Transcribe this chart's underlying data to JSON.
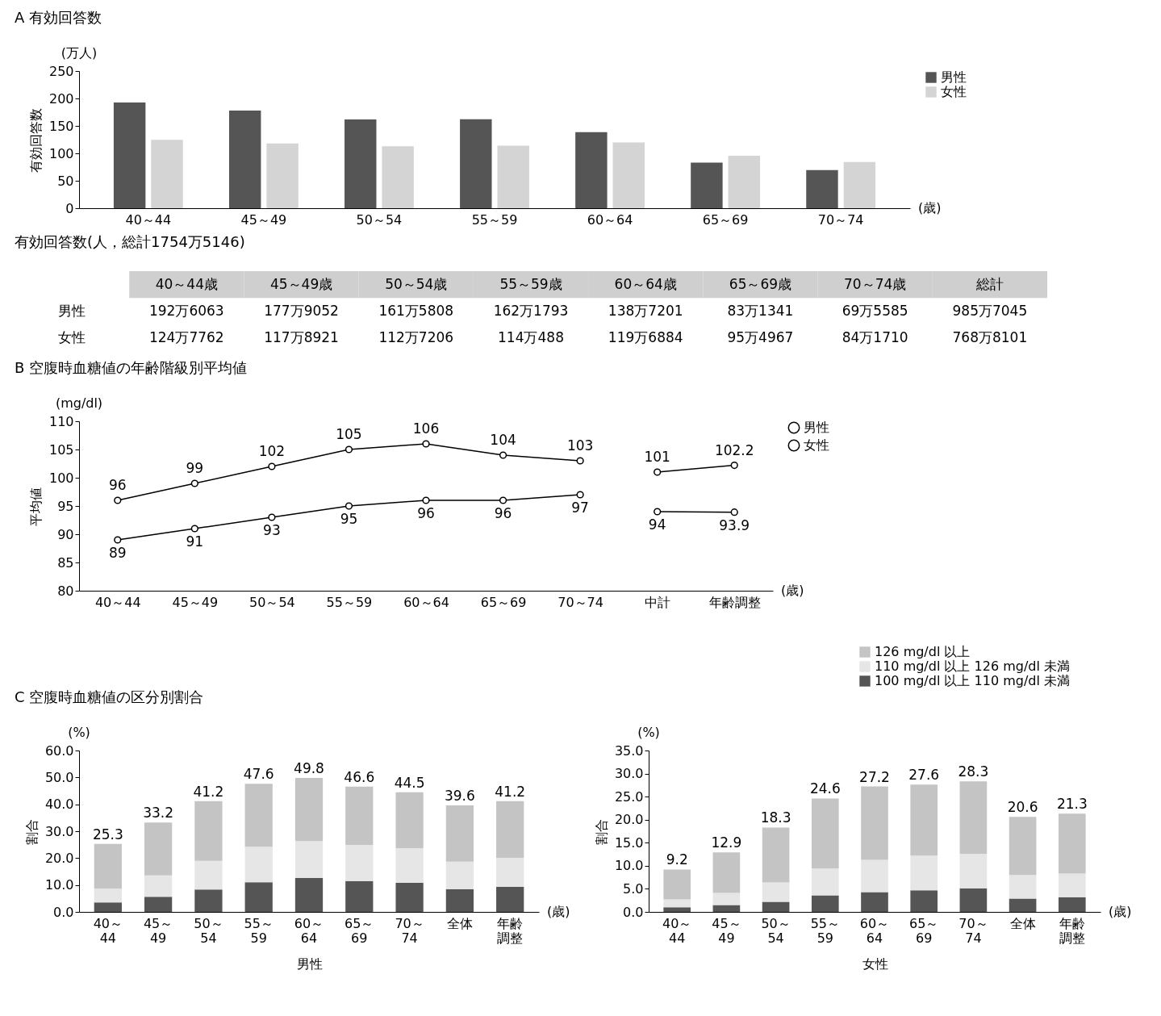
{
  "chart_data": [
    {
      "type": "bar",
      "title": "A 有効回答数",
      "ylabel": "有効回答数",
      "annotations": [
        "(万人)",
        "(歳)"
      ],
      "categories": [
        "40～44",
        "45～49",
        "50～54",
        "55～59",
        "60～64",
        "65～69",
        "70～74"
      ],
      "series": [
        {
          "name": "男性",
          "color": "#555555",
          "values": [
            192.6,
            177.9,
            161.6,
            162.2,
            138.7,
            83.1,
            69.6
          ]
        },
        {
          "name": "女性",
          "color": "#d4d4d4",
          "values": [
            124.8,
            117.9,
            112.7,
            114.0,
            119.7,
            95.5,
            84.2
          ]
        }
      ],
      "ylim": [
        0,
        250
      ],
      "yticks": [
        0,
        50,
        100,
        150,
        200,
        250
      ],
      "legend": "right"
    },
    {
      "type": "other",
      "title": "有効回答数(人，総計1754万5146)",
      "categories": [
        "40～44歳",
        "45～49歳",
        "50～54歳",
        "55～59歳",
        "60～64歳",
        "65～69歳",
        "70～74歳",
        "総計"
      ],
      "annotations": [
        "男性",
        "192万6063",
        "177万9052",
        "161万5808",
        "162万1793",
        "138万7201",
        "83万1341",
        "69万5585",
        "985万7045",
        "女性",
        "124万7762",
        "117万8921",
        "112万7206",
        "114万488",
        "119万6884",
        "95万4967",
        "84万1710",
        "768万8101"
      ]
    },
    {
      "type": "line",
      "title": "B 空腹時血糖値の年齢階級別平均値",
      "ylabel": "平均値",
      "annotations": [
        "(mg/dl)",
        "(歳)"
      ],
      "categories": [
        "40～44",
        "45～49",
        "50～54",
        "55～59",
        "60～64",
        "65～69",
        "70～74",
        "中計",
        "年齢調整"
      ],
      "series": [
        {
          "name": "男性",
          "color": "#000000",
          "values": [
            96,
            99,
            102,
            105,
            106,
            104,
            103,
            null,
            null
          ]
        },
        {
          "name": "女性",
          "color": "#000000",
          "values": [
            89,
            91,
            93,
            95,
            96,
            96,
            97,
            null,
            null
          ]
        },
        {
          "color": "#000000",
          "values": [
            null,
            null,
            null,
            null,
            null,
            null,
            null,
            101,
            102.2
          ]
        },
        {
          "color": "#000000",
          "values": [
            null,
            null,
            null,
            null,
            null,
            null,
            null,
            94,
            93.9
          ]
        }
      ],
      "ylim": [
        80,
        110
      ],
      "yticks": [
        80,
        85,
        90,
        95,
        100,
        105,
        110
      ],
      "data_labels": true,
      "marker": "circle",
      "line_style": "solid",
      "legend": "right"
    },
    {
      "type": "bar",
      "title": "C 空腹時血糖値の区分別割合",
      "ylabel": "割合",
      "xlabel": "男性",
      "annotations": [
        "(%)",
        "(歳)"
      ],
      "categories": [
        "40～44",
        "45～49",
        "50～54",
        "55～59",
        "60～64",
        "65～69",
        "70～74",
        "全体",
        "年齢調整"
      ],
      "stacked": true,
      "series": [
        {
          "color": "#555555",
          "values": [
            3.5,
            5.6,
            8.3,
            11.0,
            12.6,
            11.5,
            10.8,
            8.5,
            9.3
          ]
        },
        {
          "color": "#e6e6e6",
          "values": [
            5.2,
            8.0,
            10.7,
            13.2,
            13.7,
            13.4,
            12.9,
            10.2,
            10.8
          ]
        },
        {
          "color": "#c4c4c4",
          "values": [
            16.6,
            19.6,
            22.2,
            23.4,
            23.5,
            21.7,
            20.8,
            20.9,
            21.1
          ]
        }
      ],
      "totals": [
        "25.3",
        "33.2",
        "41.2",
        "47.6",
        "49.8",
        "46.6",
        "44.5",
        "39.6",
        "41.2"
      ],
      "ylim": [
        0,
        60
      ],
      "yticks": [
        {
          "value": 0,
          "label": "0.0"
        },
        {
          "value": 10,
          "label": "10.0"
        },
        {
          "value": 20,
          "label": "20.0"
        },
        {
          "value": 30,
          "label": "30.0"
        },
        {
          "value": 40,
          "label": "40.0"
        },
        {
          "value": 50,
          "label": "50.0"
        },
        {
          "value": 60,
          "label": "60.0"
        }
      ]
    },
    {
      "type": "bar",
      "ylabel": "割合",
      "xlabel": "女性",
      "annotations": [
        "(%)",
        "(歳)"
      ],
      "categories": [
        "40～44",
        "45～49",
        "50～54",
        "55～59",
        "60～64",
        "65～69",
        "70～74",
        "全体",
        "年齢調整"
      ],
      "stacked": true,
      "series": [
        {
          "name": "100 mg/dl 以上 110 mg/dl 未満",
          "color": "#555555",
          "values": [
            1.0,
            1.5,
            2.2,
            3.6,
            4.3,
            4.7,
            5.1,
            2.9,
            3.2
          ]
        },
        {
          "name": "110 mg/dl 以上 126 mg/dl 未満",
          "color": "#e6e6e6",
          "values": [
            1.7,
            2.6,
            4.2,
            5.8,
            7.0,
            7.5,
            7.5,
            5.1,
            5.1
          ]
        },
        {
          "name": "126 mg/dl 以上",
          "color": "#c4c4c4",
          "values": [
            6.5,
            8.8,
            11.9,
            15.2,
            15.9,
            15.4,
            15.7,
            12.6,
            13.0
          ]
        }
      ],
      "totals": [
        "9.2",
        "12.9",
        "18.3",
        "24.6",
        "27.2",
        "27.6",
        "28.3",
        "20.6",
        "21.3"
      ],
      "ylim": [
        0,
        35
      ],
      "yticks": [
        {
          "value": 0,
          "label": "0.0"
        },
        {
          "value": 5,
          "label": "5.0"
        },
        {
          "value": 10,
          "label": "10.0"
        },
        {
          "value": 15,
          "label": "15.0"
        },
        {
          "value": 20,
          "label": "20.0"
        },
        {
          "value": 25,
          "label": "25.0"
        },
        {
          "value": 30,
          "label": "30.0"
        },
        {
          "value": 35,
          "label": "35.0"
        }
      ],
      "legend": "top"
    }
  ]
}
